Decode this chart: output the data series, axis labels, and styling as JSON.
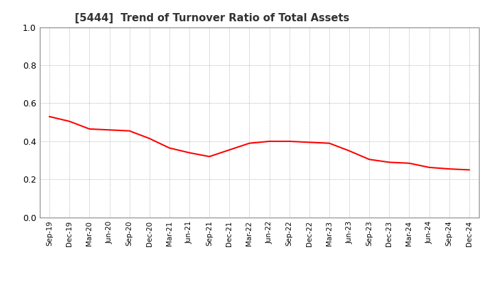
{
  "title": "[5444]  Trend of Turnover Ratio of Total Assets",
  "title_fontsize": 11,
  "title_fontweight": "bold",
  "title_color": "#333333",
  "line_color": "#FF0000",
  "line_width": 1.5,
  "background_color": "#FFFFFF",
  "grid_color": "#999999",
  "ylim": [
    0.0,
    1.0
  ],
  "yticks": [
    0.0,
    0.2,
    0.4,
    0.6,
    0.8,
    1.0
  ],
  "x_labels": [
    "Sep-19",
    "Dec-19",
    "Mar-20",
    "Jun-20",
    "Sep-20",
    "Dec-20",
    "Mar-21",
    "Jun-21",
    "Sep-21",
    "Dec-21",
    "Mar-22",
    "Jun-22",
    "Sep-22",
    "Dec-22",
    "Mar-23",
    "Jun-23",
    "Sep-23",
    "Dec-23",
    "Mar-24",
    "Jun-24",
    "Sep-24",
    "Dec-24"
  ],
  "y_values": [
    0.53,
    0.505,
    0.465,
    0.46,
    0.455,
    0.415,
    0.365,
    0.34,
    0.32,
    0.355,
    0.39,
    0.4,
    0.4,
    0.395,
    0.39,
    0.35,
    0.305,
    0.29,
    0.285,
    0.263,
    0.255,
    0.25
  ]
}
